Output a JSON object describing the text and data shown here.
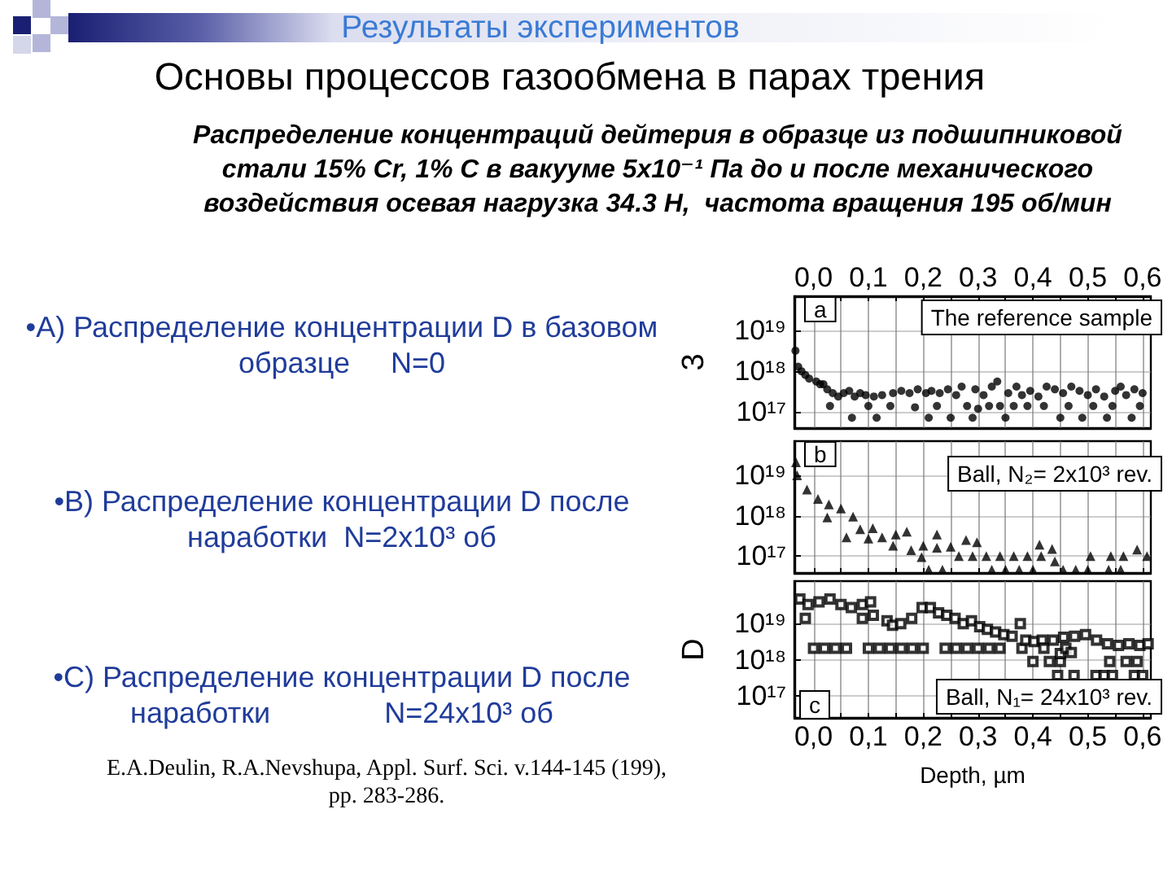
{
  "chart_data": [
    {
      "type": "other",
      "title": "Основы процессов газообмена в парах трения",
      "subtitle": "Распределение концентраций дейтерия в образце из подшипниковой стали 15% Cr, 1% C в вакууме 5x10⁻¹ Па до и после механического воздействия осевая нагрузка 34.3 Н,  частота вращения 195 об/мин",
      "annotations": [
        "Результаты экспериментов",
        "•A) Распределение концентрации D в базовом образце     N=0",
        "•B) Распределение концентрации D после наработки  N=2x10³ об",
        "•C) Распределение концентрации D после наработки              N=24x10³ об",
        "E.A.Deulin, R.A.Nevshupa, Appl. Surf. Sci. v.144-145 (199), pp. 283-286."
      ]
    },
    {
      "type": "scatter",
      "ylabel": "3",
      "log": true,
      "grid": true,
      "tick_labels": "y",
      "marker": "circle",
      "color": "#000000",
      "xlim": [
        -0.035,
        0.615
      ],
      "x2lim": [
        -0.035,
        0.615
      ],
      "x2ticks": [
        {
          "value": 0,
          "label": "0,0"
        },
        {
          "value": 0.05,
          "label": null
        },
        {
          "value": 0.1,
          "label": "0,1"
        },
        {
          "value": 0.15,
          "label": null
        },
        {
          "value": 0.2,
          "label": "0,2"
        },
        {
          "value": 0.25,
          "label": null
        },
        {
          "value": 0.3,
          "label": "0,3"
        },
        {
          "value": 0.35,
          "label": null
        },
        {
          "value": 0.4,
          "label": "0,4"
        },
        {
          "value": 0.45,
          "label": null
        },
        {
          "value": 0.5,
          "label": "0,5"
        },
        {
          "value": 0.55,
          "label": null
        },
        {
          "value": 0.6,
          "label": "0,6"
        }
      ],
      "ylim": [
        4e+16,
        7e+19
      ],
      "yticks": [
        {
          "value": 1e+17,
          "label": "10¹⁷"
        },
        {
          "value": 1e+18,
          "label": "10¹⁸"
        },
        {
          "value": 1e+19,
          "label": "10¹⁹"
        }
      ],
      "annotations": [
        "a",
        "The reference sample"
      ],
      "x": [
        -0.033,
        -0.028,
        -0.022,
        -0.015,
        -0.008,
        0.005,
        0.012,
        0.018,
        0.025,
        0.03,
        0.035,
        0.045,
        0.055,
        0.065,
        0.07,
        0.075,
        0.085,
        0.095,
        0.1,
        0.11,
        0.115,
        0.125,
        0.14,
        0.145,
        0.16,
        0.175,
        0.185,
        0.19,
        0.205,
        0.21,
        0.215,
        0.225,
        0.23,
        0.245,
        0.25,
        0.26,
        0.27,
        0.28,
        0.29,
        0.295,
        0.3,
        0.31,
        0.32,
        0.325,
        0.335,
        0.34,
        0.35,
        0.355,
        0.365,
        0.37,
        0.38,
        0.39,
        0.395,
        0.41,
        0.42,
        0.425,
        0.44,
        0.45,
        0.455,
        0.465,
        0.47,
        0.485,
        0.49,
        0.5,
        0.51,
        0.515,
        0.53,
        0.535,
        0.545,
        0.55,
        0.56,
        0.57,
        0.58,
        0.585,
        0.595,
        0.6
      ],
      "values": [
        3.2e+18,
        1.3e+18,
        1e+18,
        8.1e+17,
        6.6e+17,
        5.6e+17,
        4.8e+17,
        4.8e+17,
        3.6e+17,
        1.4e+17,
        2.9e+17,
        2.4e+17,
        2.9e+17,
        3.3e+17,
        7.2e+16,
        2.4e+17,
        2.9e+17,
        2.6e+17,
        1.4e+17,
        2.4e+17,
        7.2e+16,
        2.6e+17,
        1.4e+17,
        2.9e+17,
        3.3e+17,
        2.9e+17,
        1.3e+17,
        3.6e+17,
        2.9e+17,
        7.2e+16,
        3.3e+17,
        1.4e+17,
        2.9e+17,
        3.6e+17,
        7.2e+16,
        2.6e+17,
        4.2e+17,
        1.4e+17,
        7.2e+16,
        3.6e+17,
        1.2e+17,
        2.6e+17,
        1.4e+17,
        4.2e+17,
        5.6e+17,
        1.4e+17,
        7.2e+16,
        2.9e+17,
        1.4e+17,
        4.2e+17,
        2.6e+17,
        1.4e+17,
        3.3e+17,
        2.4e+17,
        1.4e+17,
        4.2e+17,
        3.6e+17,
        7.2e+16,
        2.9e+17,
        1.4e+17,
        4.2e+17,
        3.3e+17,
        7.2e+16,
        2.6e+17,
        1.4e+17,
        3.6e+17,
        2.4e+17,
        7.2e+16,
        1.4e+17,
        3.3e+17,
        4.2e+17,
        2.6e+17,
        7.2e+16,
        3.6e+17,
        1.4e+17,
        2.9e+17
      ]
    },
    {
      "type": "scatter",
      "log": true,
      "grid": true,
      "tick_labels": "y",
      "marker": "triangle",
      "color": "#000000",
      "xlim": [
        -0.035,
        0.615
      ],
      "xticks": [
        {
          "value": 0,
          "label": null
        },
        {
          "value": 0.05,
          "label": null
        },
        {
          "value": 0.1,
          "label": null
        },
        {
          "value": 0.15,
          "label": null
        },
        {
          "value": 0.2,
          "label": null
        },
        {
          "value": 0.25,
          "label": null
        },
        {
          "value": 0.3,
          "label": null
        },
        {
          "value": 0.35,
          "label": null
        },
        {
          "value": 0.4,
          "label": null
        },
        {
          "value": 0.45,
          "label": null
        },
        {
          "value": 0.5,
          "label": null
        },
        {
          "value": 0.55,
          "label": null
        },
        {
          "value": 0.6,
          "label": null
        }
      ],
      "ylim": [
        3.8e+16,
        7e+19
      ],
      "yticks": [
        {
          "value": 1e+17,
          "label": "10¹⁷"
        },
        {
          "value": 1e+18,
          "label": "10¹⁸"
        },
        {
          "value": 1e+19,
          "label": "10¹⁹"
        }
      ],
      "annotations": [
        "b",
        "Ball, N₂= 2x10³ rev."
      ],
      "x": [
        -0.032,
        -0.03,
        -0.012,
        0.008,
        0.025,
        0.028,
        0.05,
        0.06,
        0.072,
        0.085,
        0.1,
        0.108,
        0.125,
        0.145,
        0.15,
        0.17,
        0.178,
        0.197,
        0.2,
        0.21,
        0.225,
        0.225,
        0.235,
        0.25,
        0.265,
        0.278,
        0.29,
        0.298,
        0.315,
        0.325,
        0.34,
        0.35,
        0.365,
        0.375,
        0.39,
        0.4,
        0.412,
        0.415,
        0.435,
        0.44,
        0.455,
        0.478,
        0.5,
        0.505,
        0.538,
        0.542,
        0.56,
        0.565,
        0.59,
        0.608
      ],
      "values": [
        2.1e+19,
        1e+19,
        4.4e+18,
        2.6e+18,
        9e+17,
        1.9e+18,
        1.5e+18,
        2.9e+17,
        9.5e+17,
        4.6e+17,
        2.7e+17,
        4.9e+17,
        2.9e+17,
        1.8e+17,
        3.4e+17,
        4e+17,
        1.4e+17,
        9.4e+16,
        1.8e+17,
        4.6e+16,
        3.4e+17,
        1.6e+17,
        4.6e+16,
        1.7e+17,
        1e+17,
        2.5e+17,
        1e+17,
        2.2e+17,
        1e+17,
        4.6e+16,
        1e+17,
        4.6e+16,
        1e+17,
        4.6e+16,
        1e+17,
        4.6e+16,
        1.9e+17,
        1e+17,
        1.5e+17,
        7.4e+16,
        4.6e+16,
        4.6e+16,
        4.6e+16,
        1e+17,
        4.6e+16,
        1e+17,
        4.6e+16,
        1e+17,
        1.45e+17,
        1e+17
      ]
    },
    {
      "type": "scatter",
      "ylabel": "D",
      "xlabel": "Depth, µm",
      "log": true,
      "grid": true,
      "marker": "square",
      "color": "#000000",
      "xlim": [
        -0.035,
        0.615
      ],
      "xticks": [
        {
          "value": 0,
          "label": "0,0"
        },
        {
          "value": 0.05,
          "label": null
        },
        {
          "value": 0.1,
          "label": "0,1"
        },
        {
          "value": 0.15,
          "label": null
        },
        {
          "value": 0.2,
          "label": "0,2"
        },
        {
          "value": 0.25,
          "label": null
        },
        {
          "value": 0.3,
          "label": "0,3"
        },
        {
          "value": 0.35,
          "label": null
        },
        {
          "value": 0.4,
          "label": "0,4"
        },
        {
          "value": 0.45,
          "label": null
        },
        {
          "value": 0.5,
          "label": "0,5"
        },
        {
          "value": 0.55,
          "label": null
        },
        {
          "value": 0.6,
          "label": "0,6"
        }
      ],
      "ylim": [
        2.5e+16,
        1.5e+20
      ],
      "yticks": [
        {
          "value": 1e+17,
          "label": "10¹⁷"
        },
        {
          "value": 1e+18,
          "label": "10¹⁸"
        },
        {
          "value": 1e+19,
          "label": "10¹⁹"
        }
      ],
      "annotations": [
        "c",
        "Ball, N₁= 24x10³ rev."
      ],
      "x": [
        -0.025,
        -0.015,
        -0.01,
        0,
        0.01,
        0.02,
        0.03,
        0.04,
        0.05,
        0.06,
        0.069,
        0.089,
        0.089,
        0.1,
        0.104,
        0.109,
        0.12,
        0.134,
        0.14,
        0.144,
        0.159,
        0.16,
        0.179,
        0.18,
        0.198,
        0.2,
        0.213,
        0.228,
        0.24,
        0.243,
        0.258,
        0.26,
        0.273,
        0.28,
        0.288,
        0.3,
        0.303,
        0.317,
        0.32,
        0.332,
        0.34,
        0.347,
        0.362,
        0.377,
        0.38,
        0.387,
        0.4,
        0.402,
        0.417,
        0.42,
        0.43,
        0.437,
        0.445,
        0.45,
        0.45,
        0.456,
        0.46,
        0.47,
        0.475,
        0.476,
        0.496,
        0.515,
        0.516,
        0.53,
        0.536,
        0.54,
        0.545,
        0.556,
        0.57,
        0.575,
        0.585,
        0.59,
        0.595,
        0.6,
        0.61
      ],
      "values": [
        4.8e+19,
        1.4e+19,
        3.4e+19,
        2.1e+18,
        4e+19,
        2.1e+18,
        4.8e+19,
        2.1e+18,
        3.4e+19,
        2.1e+18,
        2.8e+19,
        3.4e+19,
        1.4e+19,
        2.1e+18,
        4e+19,
        1.7e+19,
        2.1e+18,
        1.2e+19,
        2.1e+18,
        9e+18,
        1e+19,
        2.1e+18,
        1.4e+19,
        2.1e+18,
        2.8e+19,
        2.1e+18,
        2.8e+19,
        2e+19,
        2.1e+18,
        1.7e+19,
        1.4e+19,
        2.1e+18,
        1e+19,
        2.1e+18,
        1.2e+19,
        2.1e+18,
        8.3e+18,
        7e+18,
        2.1e+18,
        5.9e+18,
        2.1e+18,
        5e+18,
        4.5e+18,
        1e+19,
        2.1e+18,
        3.5e+18,
        9e+17,
        3.2e+18,
        3.5e+18,
        2.1e+18,
        9e+17,
        3.5e+18,
        3.7e+17,
        9e+17,
        1.5e+18,
        4.2e+18,
        2.1e+18,
        1.6e+18,
        3.7e+17,
        4.5e+18,
        5e+18,
        3.7e+17,
        3.5e+18,
        3.7e+17,
        2.8e+18,
        9e+17,
        3.7e+17,
        2.5e+18,
        9e+17,
        2.8e+18,
        3.7e+17,
        9e+17,
        2.5e+18,
        3.7e+17,
        2.8e+18
      ]
    }
  ]
}
